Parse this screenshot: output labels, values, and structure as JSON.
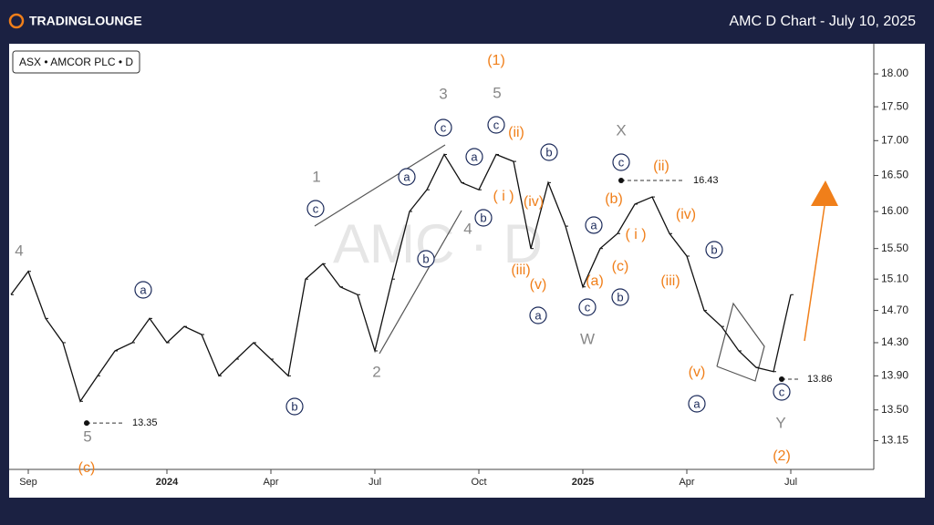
{
  "header": {
    "brand": "TRADINGLOUNGE",
    "title": "AMC D Chart - July 10, 2025"
  },
  "chart_data": {
    "type": "line",
    "symbol": "ASX • AMCOR PLC • D",
    "watermark": "AMC · D",
    "categories": [
      null,
      "Sep",
      null,
      null,
      null,
      null,
      null,
      null,
      null,
      "2024",
      null,
      null,
      null,
      null,
      null,
      "Apr",
      null,
      null,
      null,
      null,
      null,
      "Jul",
      null,
      null,
      null,
      null,
      null,
      "Oct",
      null,
      null,
      null,
      null,
      null,
      "2025",
      null,
      null,
      null,
      null,
      null,
      "Apr",
      null,
      null,
      null,
      null,
      null,
      "Jul"
    ],
    "values": [
      14.9,
      15.2,
      14.6,
      14.3,
      13.6,
      13.9,
      14.2,
      14.3,
      14.6,
      14.3,
      14.5,
      14.4,
      13.9,
      14.1,
      14.3,
      14.1,
      13.9,
      15.1,
      15.3,
      15.0,
      14.9,
      14.2,
      15.1,
      16.0,
      16.3,
      16.8,
      16.4,
      16.3,
      16.8,
      16.7,
      15.5,
      16.4,
      15.8,
      15.0,
      15.5,
      15.7,
      16.1,
      16.2,
      15.7,
      15.4,
      14.7,
      14.5,
      14.2,
      14.0,
      13.95,
      14.9
    ],
    "color": "#111111",
    "log_scale": true,
    "ylim": [
      12.83,
      18.47
    ],
    "yticks": [
      {
        "value": 18,
        "label": "18.00"
      },
      {
        "value": 17.5,
        "label": "17.50"
      },
      {
        "value": 17,
        "label": "17.00"
      },
      {
        "value": 16.5,
        "label": "16.50"
      },
      {
        "value": 16,
        "label": "16.00"
      },
      {
        "value": 15.5,
        "label": "15.50"
      },
      {
        "value": 15.1,
        "label": "15.10"
      },
      {
        "value": 14.7,
        "label": "14.70"
      },
      {
        "value": 14.3,
        "label": "14.30"
      },
      {
        "value": 13.9,
        "label": "13.90"
      },
      {
        "value": 13.5,
        "label": "13.50"
      },
      13.15
    ],
    "price_markers": [
      16.43,
      13.86,
      13.35
    ],
    "wave_labels": [
      "4",
      "5",
      "(c)",
      "a",
      "b",
      "c",
      "1",
      "2",
      "a",
      "b",
      "c",
      "3",
      "4",
      "a",
      "b",
      "c",
      "5",
      "(1)",
      "(ii)",
      "( i )",
      "(iv)",
      "(iii)",
      "(v)",
      "b",
      "a",
      "c",
      "W",
      "a",
      "(a)",
      "(b)",
      "( i )",
      "(c)",
      "b",
      "c",
      "X",
      "(ii)",
      "(iv)",
      "(iii)",
      "(v)",
      "a",
      "b",
      "c",
      "Y",
      "(2)"
    ]
  }
}
